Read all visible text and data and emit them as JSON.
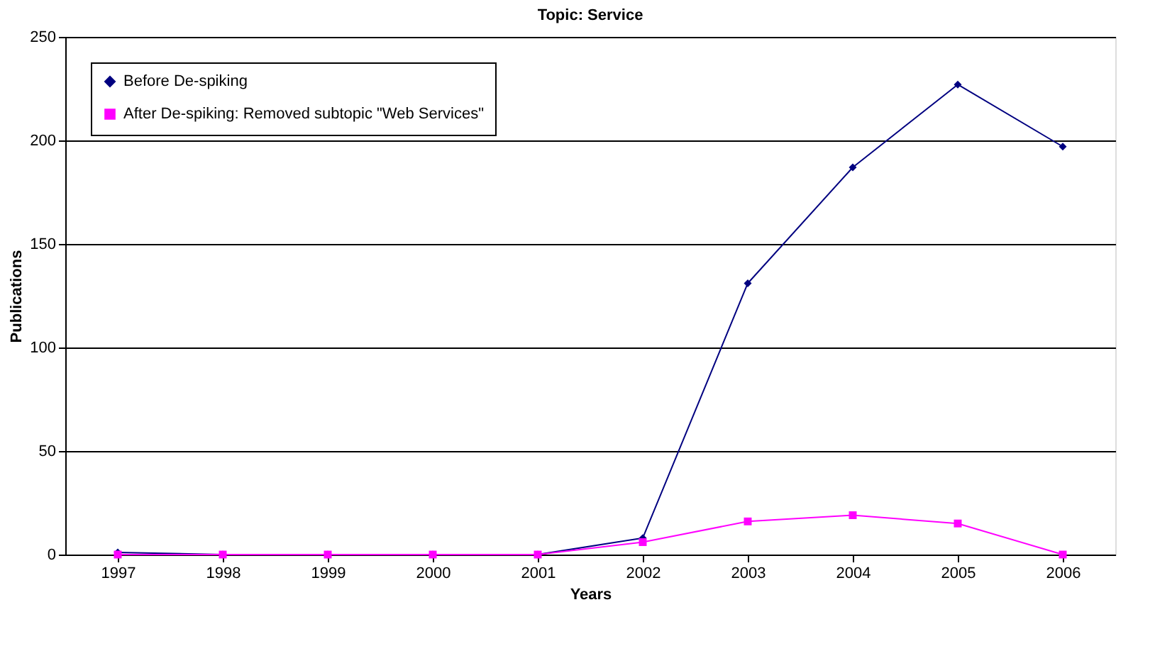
{
  "chart_data": {
    "type": "line",
    "title": "Topic: Service",
    "xlabel": "Years",
    "ylabel": "Publications",
    "categories": [
      "1997",
      "1998",
      "1999",
      "2000",
      "2001",
      "2002",
      "2003",
      "2004",
      "2005",
      "2006"
    ],
    "series": [
      {
        "name": "Before De-spiking",
        "color": "#000080",
        "marker": "diamond",
        "values": [
          1,
          0,
          0,
          0,
          0,
          8,
          131,
          187,
          227,
          197
        ]
      },
      {
        "name": "After De-spiking: Removed subtopic \"Web Services\"",
        "color": "#ff00ff",
        "marker": "square",
        "values": [
          0,
          0,
          0,
          0,
          0,
          6,
          16,
          19,
          15,
          0
        ]
      }
    ],
    "ylim": [
      0,
      250
    ],
    "yticks": [
      0,
      50,
      100,
      150,
      200,
      250
    ],
    "grid": "y",
    "legend": "top left"
  }
}
